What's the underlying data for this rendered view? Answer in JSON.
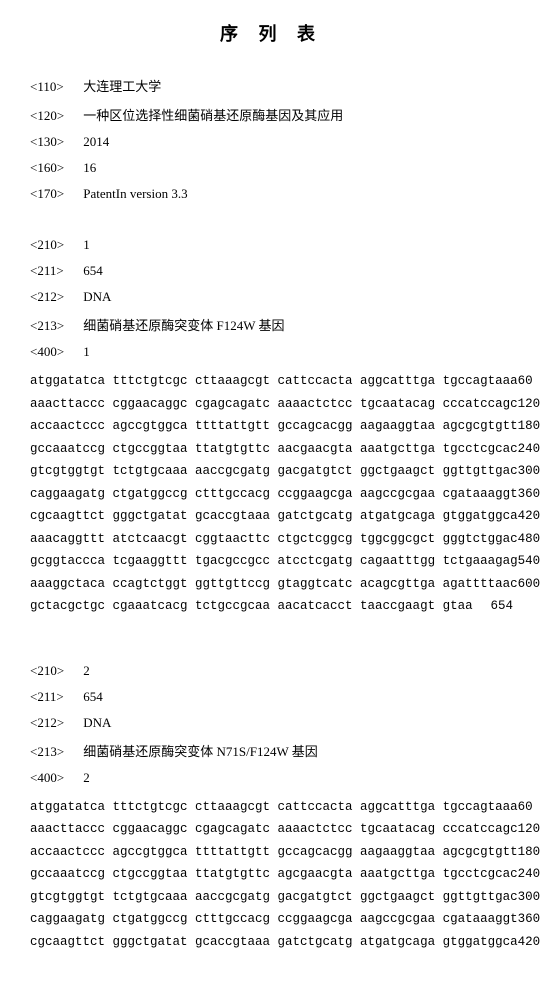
{
  "title": "序 列 表",
  "header": {
    "tag110": "<110>",
    "val110": "大连理工大学",
    "tag120": "<120>",
    "val120": "一种区位选择性细菌硝基还原酶基因及其应用",
    "tag130": "<130>",
    "val130": "2014",
    "tag160": "<160>",
    "val160": "16",
    "tag170": "<170>",
    "val170": "PatentIn version 3.3"
  },
  "seq1": {
    "tag210": "<210>",
    "val210": "1",
    "tag211": "<211>",
    "val211": "654",
    "tag212": "<212>",
    "val212": "DNA",
    "tag213": "<213>",
    "val213": "细菌硝基还原酶突变体 F124W 基因",
    "tag400": "<400>",
    "val400": "1",
    "rows": [
      {
        "g": "atggatatca tttctgtcgc cttaaagcgt cattccacta aggcatttga tgccagtaaa",
        "n": "60"
      },
      {
        "g": "aaacttaccc cggaacaggc cgagcagatc aaaactctcc tgcaatacag cccatccagc",
        "n": "120"
      },
      {
        "g": "accaactccc agccgtggca ttttattgtt gccagcacgg aagaaggtaa agcgcgtgtt",
        "n": "180"
      },
      {
        "g": "gccaaatccg ctgccggtaa ttatgtgttc aacgaacgta aaatgcttga tgcctcgcac",
        "n": "240"
      },
      {
        "g": "gtcgtggtgt tctgtgcaaa aaccgcgatg gacgatgtct ggctgaagct ggttgttgac",
        "n": "300"
      },
      {
        "g": "caggaagatg ctgatggccg ctttgccacg ccggaagcga aagccgcgaa cgataaaggt",
        "n": "360"
      },
      {
        "g": "cgcaagttct gggctgatat gcaccgtaaa gatctgcatg atgatgcaga gtggatggca",
        "n": "420"
      },
      {
        "g": "aaacaggttt atctcaacgt cggtaacttc ctgctcggcg tggcggcgct gggtctggac",
        "n": "480"
      },
      {
        "g": "gcggtaccca tcgaaggttt tgacgccgcc atcctcgatg cagaatttgg tctgaaagag",
        "n": "540"
      },
      {
        "g": "aaaggctaca ccagtctggt ggttgttccg gtaggtcatc acagcgttga agattttaac",
        "n": "600"
      },
      {
        "g": "gctacgctgc cgaaatcacg tctgccgcaa aacatcacct taaccgaagt gtaa",
        "n": "654"
      }
    ]
  },
  "seq2": {
    "tag210": "<210>",
    "val210": "2",
    "tag211": "<211>",
    "val211": "654",
    "tag212": "<212>",
    "val212": "DNA",
    "tag213": "<213>",
    "val213": "细菌硝基还原酶突变体 N71S/F124W 基因",
    "tag400": "<400>",
    "val400": "2",
    "rows": [
      {
        "g": "atggatatca tttctgtcgc cttaaagcgt cattccacta aggcatttga tgccagtaaa",
        "n": "60"
      },
      {
        "g": "aaacttaccc cggaacaggc cgagcagatc aaaactctcc tgcaatacag cccatccagc",
        "n": "120"
      },
      {
        "g": "accaactccc agccgtggca ttttattgtt gccagcacgg aagaaggtaa agcgcgtgtt",
        "n": "180"
      },
      {
        "g": "gccaaatccg ctgccggtaa ttatgtgttc agcgaacgta aaatgcttga tgcctcgcac",
        "n": "240"
      },
      {
        "g": "gtcgtggtgt tctgtgcaaa aaccgcgatg gacgatgtct ggctgaagct ggttgttgac",
        "n": "300"
      },
      {
        "g": "caggaagatg ctgatggccg ctttgccacg ccggaagcga aagccgcgaa cgataaaggt",
        "n": "360"
      },
      {
        "g": "cgcaagttct gggctgatat gcaccgtaaa gatctgcatg atgatgcaga gtggatggca",
        "n": "420"
      }
    ]
  }
}
